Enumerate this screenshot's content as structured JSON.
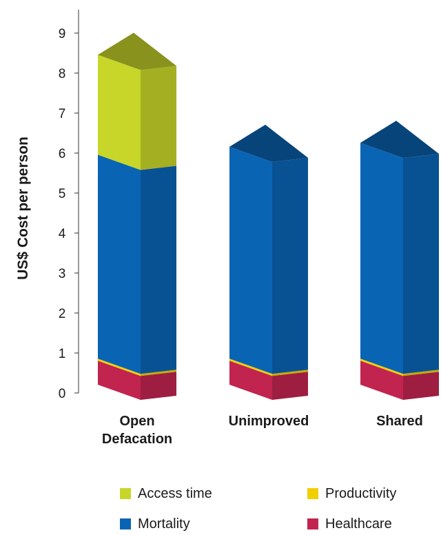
{
  "chart_data": {
    "type": "bar",
    "stacked": true,
    "style": "3d",
    "ylabel": "US$ Cost per person",
    "xlabel": "",
    "ylim": [
      0,
      9
    ],
    "yticks": [
      0,
      1,
      2,
      3,
      4,
      5,
      6,
      7,
      8,
      9
    ],
    "categories": [
      [
        "Open",
        "Defacation"
      ],
      [
        "Unimproved"
      ],
      [
        "Shared"
      ]
    ],
    "series": [
      {
        "name": "Healthcare",
        "color": "#c0244f",
        "values": [
          0.6,
          0.6,
          0.6
        ]
      },
      {
        "name": "Productivity",
        "color": "#f0d000",
        "values": [
          0.05,
          0.05,
          0.05
        ]
      },
      {
        "name": "Mortality",
        "color": "#0a64b4",
        "values": [
          5.1,
          5.3,
          5.4
        ]
      },
      {
        "name": "Access time",
        "color": "#c8d62a",
        "values": [
          2.5,
          0,
          0
        ]
      }
    ],
    "legend": {
      "placement": "bottom",
      "order": [
        "Access time",
        "Productivity",
        "Mortality",
        "Healthcare"
      ]
    },
    "grid": false
  }
}
